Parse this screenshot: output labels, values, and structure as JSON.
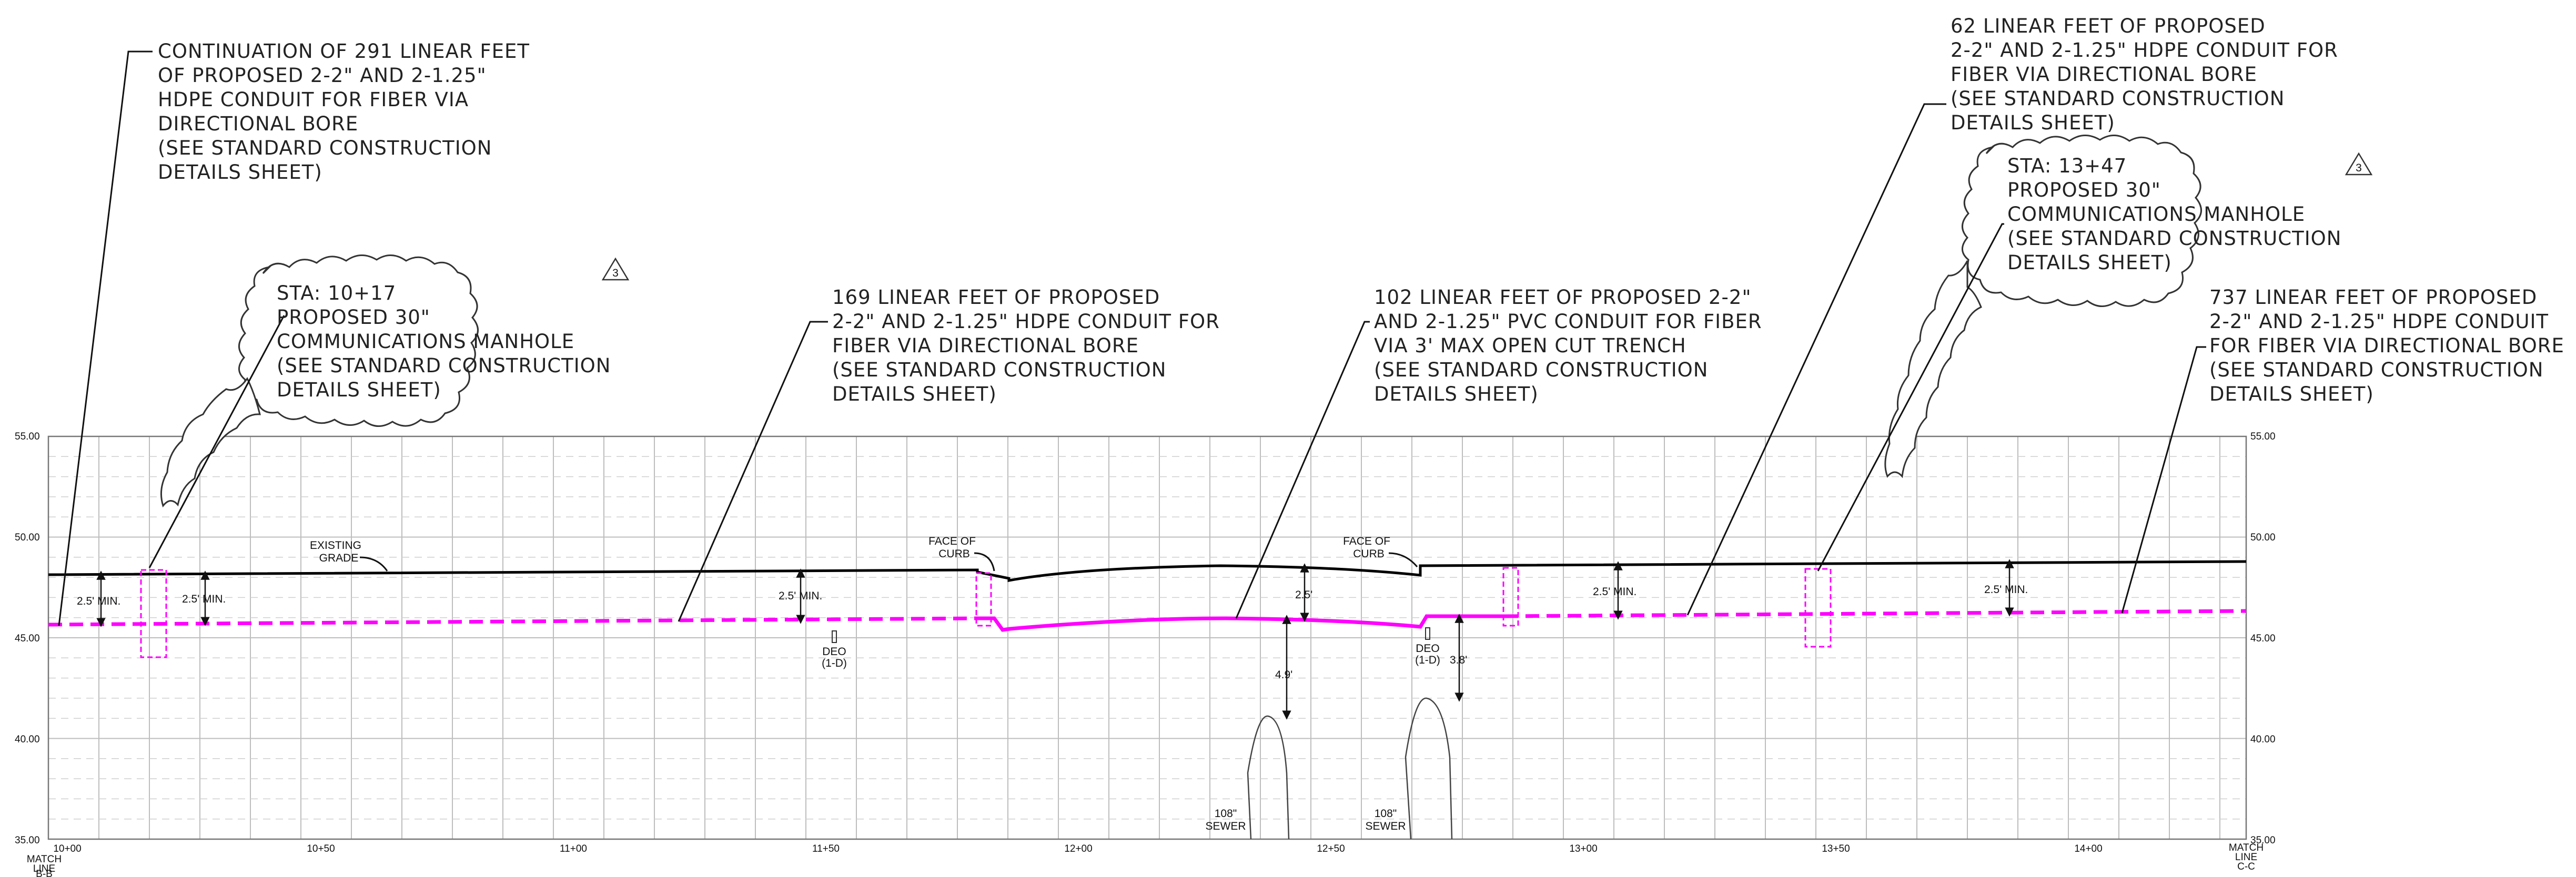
{
  "profile": {
    "elevations": [
      "55.00",
      "50.00",
      "45.00",
      "40.00",
      "35.00"
    ],
    "stations": [
      "10+00",
      "10+50",
      "11+00",
      "11+50",
      "12+00",
      "12+50",
      "13+00",
      "13+50",
      "14+00"
    ],
    "match_line_left": [
      "MATCH",
      "LINE",
      "B-B"
    ],
    "match_line_right": [
      "MATCH",
      "LINE",
      "C-C"
    ],
    "colors": {
      "existing_grade": "#000000",
      "proposed_conduit": "#ff00ff",
      "grid": "#bdbdbd"
    }
  },
  "callouts": {
    "bore_291": [
      "CONTINUATION OF 291 LINEAR FEET",
      "OF PROPOSED 2-2\" AND 2-1.25\"",
      "HDPE CONDUIT FOR FIBER VIA",
      "DIRECTIONAL BORE",
      "(SEE STANDARD CONSTRUCTION",
      "DETAILS SHEET)"
    ],
    "manhole_1017": [
      "STA: 10+17",
      "PROPOSED 30\"",
      "COMMUNICATIONS MANHOLE",
      "(SEE STANDARD CONSTRUCTION",
      "DETAILS SHEET)"
    ],
    "bore_169": [
      "169 LINEAR FEET OF PROPOSED",
      "2-2\" AND 2-1.25\" HDPE CONDUIT FOR",
      "FIBER VIA DIRECTIONAL BORE",
      "(SEE STANDARD CONSTRUCTION",
      "DETAILS SHEET)"
    ],
    "trench_102": [
      "102 LINEAR FEET OF PROPOSED 2-2\"",
      "AND 2-1.25\" PVC CONDUIT FOR FIBER",
      "VIA 3' MAX OPEN CUT TRENCH",
      "(SEE STANDARD CONSTRUCTION",
      "DETAILS SHEET)"
    ],
    "bore_62": [
      "62 LINEAR FEET OF PROPOSED",
      "2-2\" AND 2-1.25\" HDPE CONDUIT FOR",
      "FIBER VIA DIRECTIONAL BORE",
      "(SEE STANDARD CONSTRUCTION",
      "DETAILS SHEET)"
    ],
    "manhole_1347": [
      "STA: 13+47",
      "PROPOSED 30\"",
      "COMMUNICATIONS MANHOLE",
      "(SEE STANDARD CONSTRUCTION",
      "DETAILS SHEET)"
    ],
    "bore_737": [
      "737 LINEAR FEET OF PROPOSED",
      "2-2\" AND 2-1.25\" HDPE CONDUIT",
      "FOR FIBER VIA DIRECTIONAL BORE",
      "(SEE STANDARD CONSTRUCTION",
      "DETAILS SHEET)"
    ],
    "revision_mark": "3"
  },
  "labels": {
    "existing_grade": [
      "EXISTING",
      "GRADE"
    ],
    "face_of_curb": [
      "FACE OF",
      "CURB"
    ],
    "deo": [
      "DEO",
      "(1-D)"
    ],
    "sewer": [
      "108\"",
      "SEWER"
    ],
    "min_cover": "2.5' MIN.",
    "cover_25": "2.5'",
    "clear_49": "4.9'",
    "clear_38": "3.8'"
  }
}
